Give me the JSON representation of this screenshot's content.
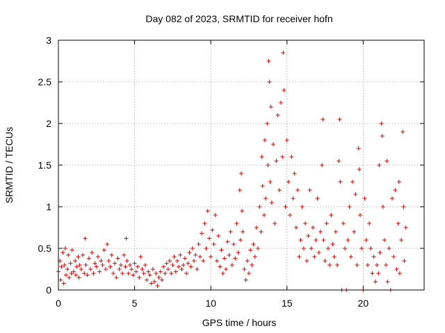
{
  "chart_data": {
    "type": "scatter",
    "title": "Day 082 of 2023, SRMTID for receiver hofn",
    "xlabel": "GPS time / hours",
    "ylabel": "SRMTID / TECUs",
    "xlim": [
      0,
      24
    ],
    "ylim": [
      0,
      3
    ],
    "xticks": [
      0,
      5,
      10,
      15,
      20
    ],
    "yticks": [
      0,
      0.5,
      1,
      1.5,
      2,
      2.5,
      3
    ],
    "xtick_labels": [
      "0",
      "5",
      "10",
      "15",
      "20"
    ],
    "ytick_labels": [
      "0",
      "0.5",
      "1",
      "1.5",
      "2",
      "2.5",
      "3"
    ],
    "grid": true,
    "marker": "+",
    "color": "#e00000",
    "series": [
      {
        "name": "SRMTID",
        "points": [
          [
            0.0,
            0.22
          ],
          [
            0.1,
            0.35
          ],
          [
            0.15,
            0.12
          ],
          [
            0.2,
            0.28
          ],
          [
            0.3,
            0.45
          ],
          [
            0.35,
            0.08
          ],
          [
            0.4,
            0.3
          ],
          [
            0.45,
            0.5
          ],
          [
            0.5,
            0.18
          ],
          [
            0.6,
            0.25
          ],
          [
            0.65,
            0.42
          ],
          [
            0.7,
            0.15
          ],
          [
            0.8,
            0.32
          ],
          [
            0.85,
            0.2
          ],
          [
            0.9,
            0.48
          ],
          [
            1.0,
            0.22
          ],
          [
            1.1,
            0.35
          ],
          [
            1.15,
            0.18
          ],
          [
            1.2,
            0.28
          ],
          [
            1.3,
            0.4
          ],
          [
            1.35,
            0.15
          ],
          [
            1.4,
            0.3
          ],
          [
            1.5,
            0.25
          ],
          [
            1.6,
            0.42
          ],
          [
            1.7,
            0.2
          ],
          [
            1.75,
            0.62
          ],
          [
            1.8,
            0.3
          ],
          [
            1.9,
            0.18
          ],
          [
            2.0,
            0.38
          ],
          [
            2.1,
            0.25
          ],
          [
            2.2,
            0.45
          ],
          [
            2.3,
            0.2
          ],
          [
            2.4,
            0.32
          ],
          [
            2.5,
            0.28
          ],
          [
            2.6,
            0.4
          ],
          [
            2.7,
            0.22
          ],
          [
            2.8,
            0.35
          ],
          [
            2.9,
            0.3
          ],
          [
            3.0,
            0.48
          ],
          [
            3.1,
            0.25
          ],
          [
            3.2,
            0.55
          ],
          [
            3.3,
            0.35
          ],
          [
            3.4,
            0.28
          ],
          [
            3.5,
            0.42
          ],
          [
            3.6,
            0.2
          ],
          [
            3.7,
            0.32
          ],
          [
            3.8,
            0.15
          ],
          [
            3.9,
            0.38
          ],
          [
            4.0,
            0.25
          ],
          [
            4.1,
            0.3
          ],
          [
            4.2,
            0.2
          ],
          [
            4.3,
            0.42
          ],
          [
            4.4,
            0.28
          ],
          [
            4.45,
            0.62
          ],
          [
            4.5,
            0.35
          ],
          [
            4.6,
            0.2
          ],
          [
            4.7,
            0.3
          ],
          [
            4.8,
            0.25
          ],
          [
            4.9,
            0.18
          ],
          [
            5.0,
            0.32
          ],
          [
            5.1,
            0.22
          ],
          [
            5.2,
            0.28
          ],
          [
            5.3,
            0.15
          ],
          [
            5.4,
            0.4
          ],
          [
            5.5,
            0.25
          ],
          [
            5.6,
            0.2
          ],
          [
            5.7,
            0.3
          ],
          [
            5.8,
            0.12
          ],
          [
            5.9,
            0.22
          ],
          [
            6.0,
            0.18
          ],
          [
            6.1,
            0.08
          ],
          [
            6.2,
            0.25
          ],
          [
            6.3,
            0.1
          ],
          [
            6.4,
            0.2
          ],
          [
            6.5,
            0.05
          ],
          [
            6.6,
            0.15
          ],
          [
            6.7,
            0.22
          ],
          [
            6.8,
            0.12
          ],
          [
            6.9,
            0.28
          ],
          [
            7.0,
            0.2
          ],
          [
            7.1,
            0.32
          ],
          [
            7.2,
            0.25
          ],
          [
            7.3,
            0.35
          ],
          [
            7.4,
            0.2
          ],
          [
            7.5,
            0.3
          ],
          [
            7.6,
            0.4
          ],
          [
            7.7,
            0.22
          ],
          [
            7.8,
            0.35
          ],
          [
            7.9,
            0.28
          ],
          [
            8.0,
            0.42
          ],
          [
            8.1,
            0.25
          ],
          [
            8.2,
            0.3
          ],
          [
            8.3,
            0.38
          ],
          [
            8.4,
            0.2
          ],
          [
            8.5,
            0.32
          ],
          [
            8.6,
            0.45
          ],
          [
            8.7,
            0.28
          ],
          [
            8.8,
            0.5
          ],
          [
            8.9,
            0.35
          ],
          [
            9.0,
            0.42
          ],
          [
            9.1,
            0.25
          ],
          [
            9.2,
            0.55
          ],
          [
            9.3,
            0.4
          ],
          [
            9.4,
            0.68
          ],
          [
            9.5,
            0.35
          ],
          [
            9.6,
            0.8
          ],
          [
            9.7,
            0.5
          ],
          [
            9.8,
            0.95
          ],
          [
            9.9,
            0.62
          ],
          [
            10.0,
            0.4
          ],
          [
            10.1,
            0.72
          ],
          [
            10.2,
            0.55
          ],
          [
            10.3,
            0.9
          ],
          [
            10.4,
            0.35
          ],
          [
            10.5,
            0.65
          ],
          [
            10.6,
            0.28
          ],
          [
            10.7,
            0.48
          ],
          [
            10.8,
            0.2
          ],
          [
            10.9,
            0.38
          ],
          [
            11.0,
            0.25
          ],
          [
            11.1,
            0.58
          ],
          [
            11.2,
            0.42
          ],
          [
            11.3,
            0.7
          ],
          [
            11.4,
            0.3
          ],
          [
            11.5,
            0.55
          ],
          [
            11.6,
            0.38
          ],
          [
            11.7,
            0.8
          ],
          [
            11.8,
            0.45
          ],
          [
            11.9,
            1.2
          ],
          [
            11.95,
            0.6
          ],
          [
            12.0,
            1.4
          ],
          [
            12.05,
            0.95
          ],
          [
            12.1,
            0.7
          ],
          [
            12.2,
            0.25
          ],
          [
            12.3,
            0.12
          ],
          [
            12.4,
            0.35
          ],
          [
            12.5,
            0.2
          ],
          [
            12.6,
            0.48
          ],
          [
            12.7,
            0.3
          ],
          [
            12.8,
            0.55
          ],
          [
            12.9,
            0.4
          ],
          [
            13.0,
            0.75
          ],
          [
            13.1,
            0.5
          ],
          [
            13.2,
            1.0
          ],
          [
            13.3,
            0.7
          ],
          [
            13.35,
            1.6
          ],
          [
            13.4,
            1.25
          ],
          [
            13.5,
            0.9
          ],
          [
            13.55,
            1.8
          ],
          [
            13.6,
            1.1
          ],
          [
            13.7,
            2.0
          ],
          [
            13.75,
            1.5
          ],
          [
            13.8,
            2.75
          ],
          [
            13.85,
            2.5
          ],
          [
            13.9,
            1.3
          ],
          [
            13.95,
            2.2
          ],
          [
            14.0,
            1.05
          ],
          [
            14.1,
            1.75
          ],
          [
            14.2,
            0.8
          ],
          [
            14.3,
            1.55
          ],
          [
            14.4,
            2.1
          ],
          [
            14.5,
            1.2
          ],
          [
            14.6,
            2.25
          ],
          [
            14.7,
            1.6
          ],
          [
            14.75,
            2.85
          ],
          [
            14.8,
            2.4
          ],
          [
            14.9,
            1.0
          ],
          [
            15.0,
            1.8
          ],
          [
            15.1,
            1.3
          ],
          [
            15.2,
            0.9
          ],
          [
            15.3,
            1.6
          ],
          [
            15.4,
            1.1
          ],
          [
            15.5,
            1.4
          ],
          [
            15.6,
            0.75
          ],
          [
            15.7,
            1.2
          ],
          [
            15.8,
            0.4
          ],
          [
            15.9,
            0.6
          ],
          [
            16.0,
            1.0
          ],
          [
            16.1,
            0.5
          ],
          [
            16.2,
            0.8
          ],
          [
            16.3,
            0.35
          ],
          [
            16.4,
            0.65
          ],
          [
            16.5,
            1.2
          ],
          [
            16.6,
            0.5
          ],
          [
            16.7,
            0.75
          ],
          [
            16.8,
            0.4
          ],
          [
            16.9,
            0.6
          ],
          [
            17.0,
            1.1
          ],
          [
            17.1,
            0.45
          ],
          [
            17.2,
            0.7
          ],
          [
            17.3,
            1.5
          ],
          [
            17.35,
            2.05
          ],
          [
            17.4,
            0.6
          ],
          [
            17.5,
            0.35
          ],
          [
            17.6,
            0.8
          ],
          [
            17.7,
            0.5
          ],
          [
            17.8,
            0.3
          ],
          [
            17.9,
            0.9
          ],
          [
            18.0,
            0.55
          ],
          [
            18.1,
            0.4
          ],
          [
            18.2,
            0.7
          ],
          [
            18.3,
            0.3
          ],
          [
            18.4,
            1.55
          ],
          [
            18.45,
            2.05
          ],
          [
            18.5,
            1.3
          ],
          [
            18.6,
            0.0
          ],
          [
            18.7,
            0.8
          ],
          [
            18.8,
            0.5
          ],
          [
            18.9,
            0.0
          ],
          [
            19.0,
            0.6
          ],
          [
            19.1,
            1.0
          ],
          [
            19.2,
            0.4
          ],
          [
            19.3,
            1.3
          ],
          [
            19.4,
            0.7
          ],
          [
            19.5,
            1.15
          ],
          [
            19.6,
            0.3
          ],
          [
            19.7,
            1.7
          ],
          [
            19.75,
            1.45
          ],
          [
            19.8,
            0.9
          ],
          [
            19.9,
            0.5
          ],
          [
            20.0,
            0.0
          ],
          [
            20.1,
            1.1
          ],
          [
            20.2,
            0.6
          ],
          [
            20.3,
            0.3
          ],
          [
            20.4,
            0.8
          ],
          [
            20.5,
            0.5
          ],
          [
            20.6,
            0.2
          ],
          [
            20.7,
            0.4
          ],
          [
            20.8,
            0.1
          ],
          [
            20.9,
            0.3
          ],
          [
            21.0,
            0.2
          ],
          [
            21.05,
            1.5
          ],
          [
            21.1,
            0.45
          ],
          [
            21.2,
            2.0
          ],
          [
            21.25,
            1.85
          ],
          [
            21.3,
            1.0
          ],
          [
            21.4,
            0.6
          ],
          [
            21.5,
            0.3
          ],
          [
            21.55,
            1.55
          ],
          [
            21.6,
            0.1
          ],
          [
            21.7,
            0.5
          ],
          [
            21.8,
            0.0
          ],
          [
            21.9,
            1.1
          ],
          [
            22.0,
            0.4
          ],
          [
            22.1,
            1.2
          ],
          [
            22.2,
            0.25
          ],
          [
            22.3,
            0.8
          ],
          [
            22.35,
            1.3
          ],
          [
            22.4,
            0.2
          ],
          [
            22.5,
            0.6
          ],
          [
            22.6,
            1.9
          ],
          [
            22.65,
            1.0
          ],
          [
            22.7,
            0.35
          ],
          [
            22.8,
            0.75
          ]
        ]
      }
    ]
  }
}
